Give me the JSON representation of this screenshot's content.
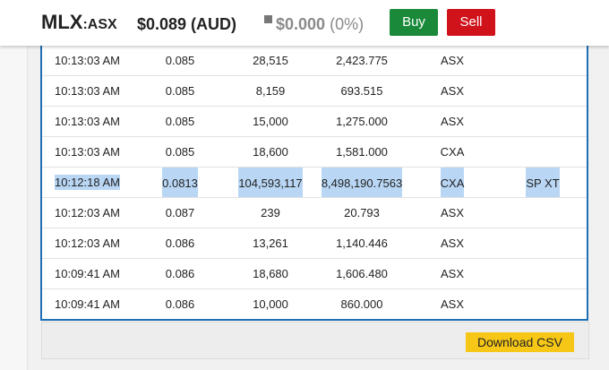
{
  "header": {
    "ticker_code": "MLX",
    "ticker_exchange": ":ASX",
    "price": "$0.089 (AUD)",
    "change_abs": "$0.000",
    "change_pct": "(0%)",
    "buy_label": "Buy",
    "sell_label": "Sell"
  },
  "trades": [
    {
      "time": "10:13:03 AM",
      "price": "0.085",
      "volume": "28,515",
      "value": "2,423.775",
      "market": "ASX",
      "condition": ""
    },
    {
      "time": "10:13:03 AM",
      "price": "0.085",
      "volume": "8,159",
      "value": "693.515",
      "market": "ASX",
      "condition": ""
    },
    {
      "time": "10:13:03 AM",
      "price": "0.085",
      "volume": "15,000",
      "value": "1,275.000",
      "market": "ASX",
      "condition": ""
    },
    {
      "time": "10:13:03 AM",
      "price": "0.085",
      "volume": "18,600",
      "value": "1,581.000",
      "market": "CXA",
      "condition": ""
    },
    {
      "time": "10:12:18 AM",
      "price": "0.0813",
      "volume": "104,593,117",
      "value": "8,498,190.7563",
      "market": "CXA",
      "condition": "SP XT",
      "selected": true
    },
    {
      "time": "10:12:03 AM",
      "price": "0.087",
      "volume": "239",
      "value": "20.793",
      "market": "ASX",
      "condition": ""
    },
    {
      "time": "10:12:03 AM",
      "price": "0.086",
      "volume": "13,261",
      "value": "1,140.446",
      "market": "ASX",
      "condition": ""
    },
    {
      "time": "10:09:41 AM",
      "price": "0.086",
      "volume": "18,680",
      "value": "1,606.480",
      "market": "ASX",
      "condition": ""
    },
    {
      "time": "10:09:41 AM",
      "price": "0.086",
      "volume": "10,000",
      "value": "860.000",
      "market": "ASX",
      "condition": ""
    }
  ],
  "footer": {
    "download_label": "Download CSV"
  },
  "colors": {
    "buy": "#1a8a3a",
    "sell": "#d0121b",
    "panel_border": "#1f6fb5",
    "selection": "#b9d7f5",
    "download": "#f6c717"
  }
}
